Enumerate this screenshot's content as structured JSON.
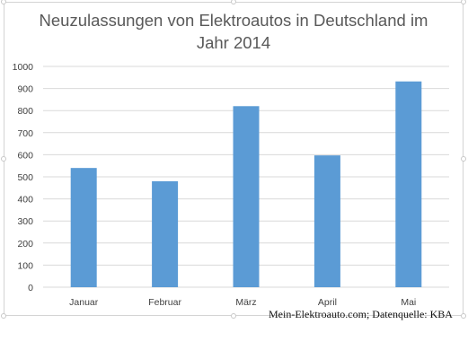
{
  "chart_data": {
    "type": "bar",
    "title": "Neuzulassungen von Elektroautos in Deutschland im Jahr 2014",
    "categories": [
      "Januar",
      "Februar",
      "März",
      "April",
      "Mai"
    ],
    "values": [
      540,
      480,
      820,
      597,
      932
    ],
    "ylim": [
      0,
      1000
    ],
    "yticks": [
      0,
      100,
      200,
      300,
      400,
      500,
      600,
      700,
      800,
      900,
      1000
    ],
    "grid": true,
    "legend": "none",
    "bar_color": "#5b9bd5",
    "grid_color": "#d9d9d9"
  },
  "footnote": "Mein-Elektroauto.com; Datenquelle: KBA"
}
